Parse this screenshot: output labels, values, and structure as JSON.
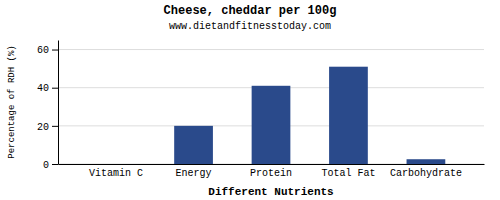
{
  "chart_data": {
    "type": "bar",
    "title": "Cheese, cheddar per 100g",
    "subtitle": "www.dietandfitnesstoday.com",
    "xlabel": "Different Nutrients",
    "ylabel": "Percentage of RDH (%)",
    "categories": [
      "Vitamin C",
      "Energy",
      "Protein",
      "Total Fat",
      "Carbohydrate"
    ],
    "values": [
      0,
      20,
      41,
      51,
      2.5
    ],
    "color": "#2a4a8b",
    "ylim": [
      0,
      65
    ],
    "yticks": [
      0,
      20,
      40,
      60
    ],
    "grid": true
  }
}
